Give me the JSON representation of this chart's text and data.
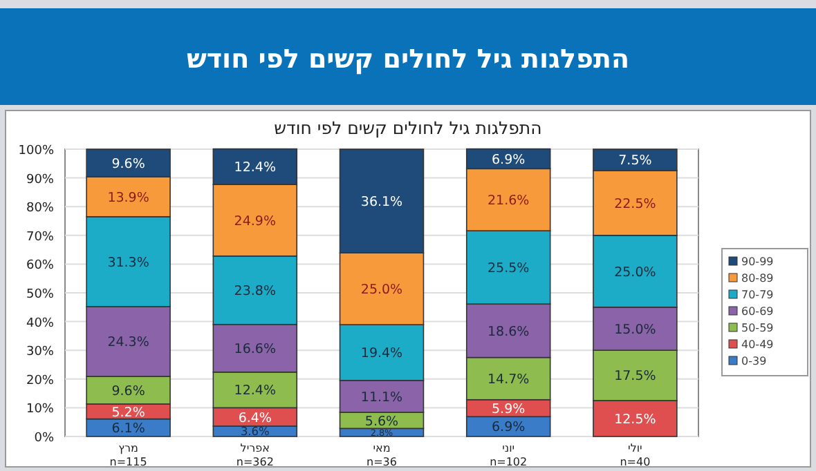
{
  "chart_data": {
    "type": "bar",
    "stacked": true,
    "title": "התפלגות גיל לחולים קשים לפי חודש",
    "subtitle": "התפלגות גיל לחולים קשים לפי חודש",
    "categories": [
      "מרץ\nn=115",
      "אפריל\nn=362",
      "מאי\nn=36",
      "יוני\nn=102",
      "יולי\nn=40"
    ],
    "series": [
      {
        "name": "0-39",
        "color": "#3a7cc8",
        "values": [
          6.1,
          3.6,
          2.8,
          6.9,
          0
        ],
        "value_labels": [
          "6.1%",
          "3.6%",
          "2.8%",
          "6.9%",
          null
        ]
      },
      {
        "name": "40-49",
        "color": "#e04f4f",
        "values": [
          5.2,
          6.4,
          0,
          5.9,
          12.5
        ],
        "value_labels": [
          "5.2%",
          "6.4%",
          null,
          "5.9%",
          "12.5%"
        ]
      },
      {
        "name": "50-59",
        "color": "#8fbc4f",
        "values": [
          9.6,
          12.4,
          5.6,
          14.7,
          17.5
        ],
        "value_labels": [
          "9.6%",
          "12.4%",
          "5.6%",
          "14.7%",
          "17.5%"
        ]
      },
      {
        "name": "60-69",
        "color": "#8a63a8",
        "values": [
          24.3,
          16.6,
          11.1,
          18.6,
          15.0
        ],
        "value_labels": [
          "24.3%",
          "16.6%",
          "11.1%",
          "18.6%",
          "15.0%"
        ]
      },
      {
        "name": "70-79",
        "color": "#1cacc8",
        "values": [
          31.3,
          23.8,
          19.4,
          25.5,
          25.0
        ],
        "value_labels": [
          "31.3%",
          "23.8%",
          "19.4%",
          "25.5%",
          "25.0%"
        ]
      },
      {
        "name": "80-89",
        "color": "#f79a3c",
        "values": [
          13.9,
          24.9,
          25.0,
          21.6,
          22.5
        ],
        "value_labels": [
          "13.9%",
          "24.9%",
          "25.0%",
          "21.6%",
          "22.5%"
        ]
      },
      {
        "name": "90-99",
        "color": "#1f4b7a",
        "values": [
          9.6,
          12.4,
          36.1,
          6.9,
          7.5
        ],
        "value_labels": [
          "9.6%",
          "12.4%",
          "36.1%",
          "6.9%",
          "7.5%"
        ]
      }
    ],
    "ylim": [
      0,
      100
    ],
    "yticks": [
      {
        "value": 0,
        "label": "0%"
      },
      {
        "value": 10,
        "label": "10%"
      },
      {
        "value": 20,
        "label": "20%"
      },
      {
        "value": 30,
        "label": "30%"
      },
      {
        "value": 40,
        "label": "40%"
      },
      {
        "value": 50,
        "label": "50%"
      },
      {
        "value": 60,
        "label": "60%"
      },
      {
        "value": 70,
        "label": "70%"
      },
      {
        "value": 80,
        "label": "80%"
      },
      {
        "value": 90,
        "label": "90%"
      },
      {
        "value": 100,
        "label": "100%"
      }
    ],
    "grid": "y",
    "legend": "right"
  }
}
